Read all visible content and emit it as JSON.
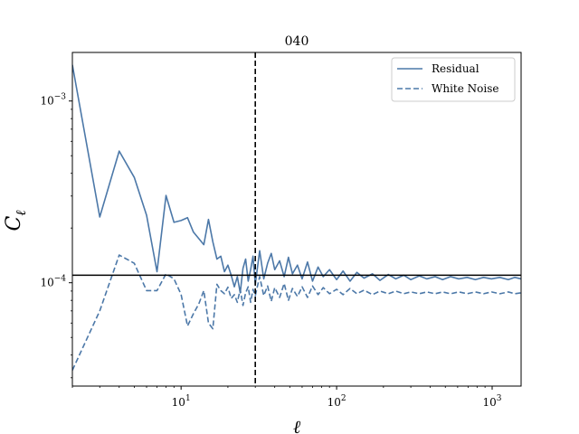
{
  "chart_data": {
    "type": "line",
    "title": "040",
    "xlabel": "ℓ",
    "ylabel": "C",
    "ylabel_subscript": "ℓ",
    "xscale": "log",
    "yscale": "log",
    "xlim": [
      2,
      1535
    ],
    "ylim": [
      2.7e-05,
      0.00185
    ],
    "x_ticks": [
      {
        "value": 10,
        "base": "10",
        "exp": "1"
      },
      {
        "value": 100,
        "base": "10",
        "exp": "2"
      },
      {
        "value": 1000,
        "base": "10",
        "exp": "3"
      }
    ],
    "y_ticks": [
      {
        "value": 0.0001,
        "base": "10",
        "exp": "−4"
      },
      {
        "value": 0.001,
        "base": "10",
        "exp": "−3"
      }
    ],
    "grid": false,
    "legend_position": "top-right",
    "series": [
      {
        "name": "Residual",
        "color": "#4c78a8",
        "dash": "solid",
        "points": [
          [
            2,
            0.00158
          ],
          [
            3,
            0.00023
          ],
          [
            4,
            0.00053
          ],
          [
            5,
            0.00038
          ],
          [
            6,
            0.000235
          ],
          [
            7,
            0.000115
          ],
          [
            8,
            0.000302
          ],
          [
            9,
            0.000215
          ],
          [
            10,
            0.00022
          ],
          [
            11,
            0.000228
          ],
          [
            12,
            0.00019
          ],
          [
            13,
            0.000175
          ],
          [
            14,
            0.000162
          ],
          [
            15,
            0.000223
          ],
          [
            16,
            0.000168
          ],
          [
            17,
            0.000135
          ],
          [
            18,
            0.00014
          ],
          [
            19,
            0.000115
          ],
          [
            20,
            0.000125
          ],
          [
            21,
            0.00011
          ],
          [
            22,
            9.5e-05
          ],
          [
            23,
            0.000108
          ],
          [
            24,
            8.8e-05
          ],
          [
            25,
            0.00012
          ],
          [
            26,
            0.000135
          ],
          [
            27,
            0.000102
          ],
          [
            28,
            0.000118
          ],
          [
            29,
            0.00014
          ],
          [
            30,
            9.8e-05
          ],
          [
            32,
            0.00015
          ],
          [
            34,
            0.000105
          ],
          [
            36,
            0.000128
          ],
          [
            38,
            0.000145
          ],
          [
            40,
            0.000118
          ],
          [
            43,
            0.000132
          ],
          [
            46,
            0.000108
          ],
          [
            49,
            0.000138
          ],
          [
            52,
            0.000112
          ],
          [
            56,
            0.000125
          ],
          [
            60,
            0.000105
          ],
          [
            65,
            0.00013
          ],
          [
            70,
            0.000102
          ],
          [
            76,
            0.000122
          ],
          [
            82,
            0.000108
          ],
          [
            90,
            0.000118
          ],
          [
            100,
            0.000104
          ],
          [
            110,
            0.000116
          ],
          [
            122,
            0.000102
          ],
          [
            135,
            0.000114
          ],
          [
            150,
            0.000106
          ],
          [
            170,
            0.000112
          ],
          [
            190,
            0.000103
          ],
          [
            215,
            0.000111
          ],
          [
            240,
            0.000105
          ],
          [
            270,
            0.00011
          ],
          [
            300,
            0.000104
          ],
          [
            340,
            0.000109
          ],
          [
            380,
            0.000105
          ],
          [
            430,
            0.000108
          ],
          [
            480,
            0.000104
          ],
          [
            540,
            0.000108
          ],
          [
            610,
            0.000105
          ],
          [
            690,
            0.000107
          ],
          [
            780,
            0.000104
          ],
          [
            880,
            0.000107
          ],
          [
            990,
            0.000105
          ],
          [
            1120,
            0.000107
          ],
          [
            1270,
            0.000104
          ],
          [
            1400,
            0.000107
          ],
          [
            1535,
            0.000105
          ]
        ]
      },
      {
        "name": "White Noise",
        "color": "#4c78a8",
        "dash": "dashed",
        "points": [
          [
            2,
            3.3e-05
          ],
          [
            3,
            7e-05
          ],
          [
            4,
            0.000142
          ],
          [
            5,
            0.000128
          ],
          [
            6,
            9.05e-05
          ],
          [
            7,
            9.05e-05
          ],
          [
            8,
            0.000112
          ],
          [
            9,
            0.000105
          ],
          [
            10,
            8.62e-05
          ],
          [
            11,
            5.78e-05
          ],
          [
            12,
            6.75e-05
          ],
          [
            13,
            7.65e-05
          ],
          [
            14,
            9.05e-05
          ],
          [
            15,
            6e-05
          ],
          [
            16,
            5.58e-05
          ],
          [
            17,
            9.8e-05
          ],
          [
            18,
            9.05e-05
          ],
          [
            19,
            8.7e-05
          ],
          [
            20,
            9.45e-05
          ],
          [
            21,
            8.2e-05
          ],
          [
            22,
            8.6e-05
          ],
          [
            23,
            7.8e-05
          ],
          [
            24,
            9.2e-05
          ],
          [
            25,
            7.5e-05
          ],
          [
            26,
            8.8e-05
          ],
          [
            27,
            9.5e-05
          ],
          [
            28,
            7.8e-05
          ],
          [
            29,
            9.2e-05
          ],
          [
            30,
            8.5e-05
          ],
          [
            32,
            0.000108
          ],
          [
            34,
            8.5e-05
          ],
          [
            36,
            9.6e-05
          ],
          [
            38,
            7.9e-05
          ],
          [
            40,
            9.4e-05
          ],
          [
            43,
            8.3e-05
          ],
          [
            46,
            9.9e-05
          ],
          [
            49,
            8e-05
          ],
          [
            52,
            9.3e-05
          ],
          [
            56,
            8.4e-05
          ],
          [
            60,
            9.5e-05
          ],
          [
            65,
            8.3e-05
          ],
          [
            70,
            9.6e-05
          ],
          [
            76,
            8.6e-05
          ],
          [
            82,
            9.4e-05
          ],
          [
            90,
            8.7e-05
          ],
          [
            100,
            9.2e-05
          ],
          [
            110,
            8.6e-05
          ],
          [
            122,
            9.3e-05
          ],
          [
            135,
            8.7e-05
          ],
          [
            150,
            9.1e-05
          ],
          [
            170,
            8.6e-05
          ],
          [
            190,
            9e-05
          ],
          [
            215,
            8.7e-05
          ],
          [
            240,
            9e-05
          ],
          [
            270,
            8.7e-05
          ],
          [
            300,
            8.9e-05
          ],
          [
            340,
            8.7e-05
          ],
          [
            380,
            8.9e-05
          ],
          [
            430,
            8.7e-05
          ],
          [
            480,
            8.9e-05
          ],
          [
            540,
            8.7e-05
          ],
          [
            610,
            8.9e-05
          ],
          [
            690,
            8.7e-05
          ],
          [
            780,
            8.9e-05
          ],
          [
            880,
            8.7e-05
          ],
          [
            990,
            8.9e-05
          ],
          [
            1120,
            8.7e-05
          ],
          [
            1270,
            8.9e-05
          ],
          [
            1400,
            8.7e-05
          ],
          [
            1535,
            8.8e-05
          ]
        ]
      }
    ],
    "reference_lines": [
      {
        "orientation": "horizontal",
        "value": 0.00011,
        "style": "solid",
        "color": "#000000"
      },
      {
        "orientation": "vertical",
        "value": 30,
        "style": "dashed",
        "color": "#000000"
      }
    ]
  }
}
